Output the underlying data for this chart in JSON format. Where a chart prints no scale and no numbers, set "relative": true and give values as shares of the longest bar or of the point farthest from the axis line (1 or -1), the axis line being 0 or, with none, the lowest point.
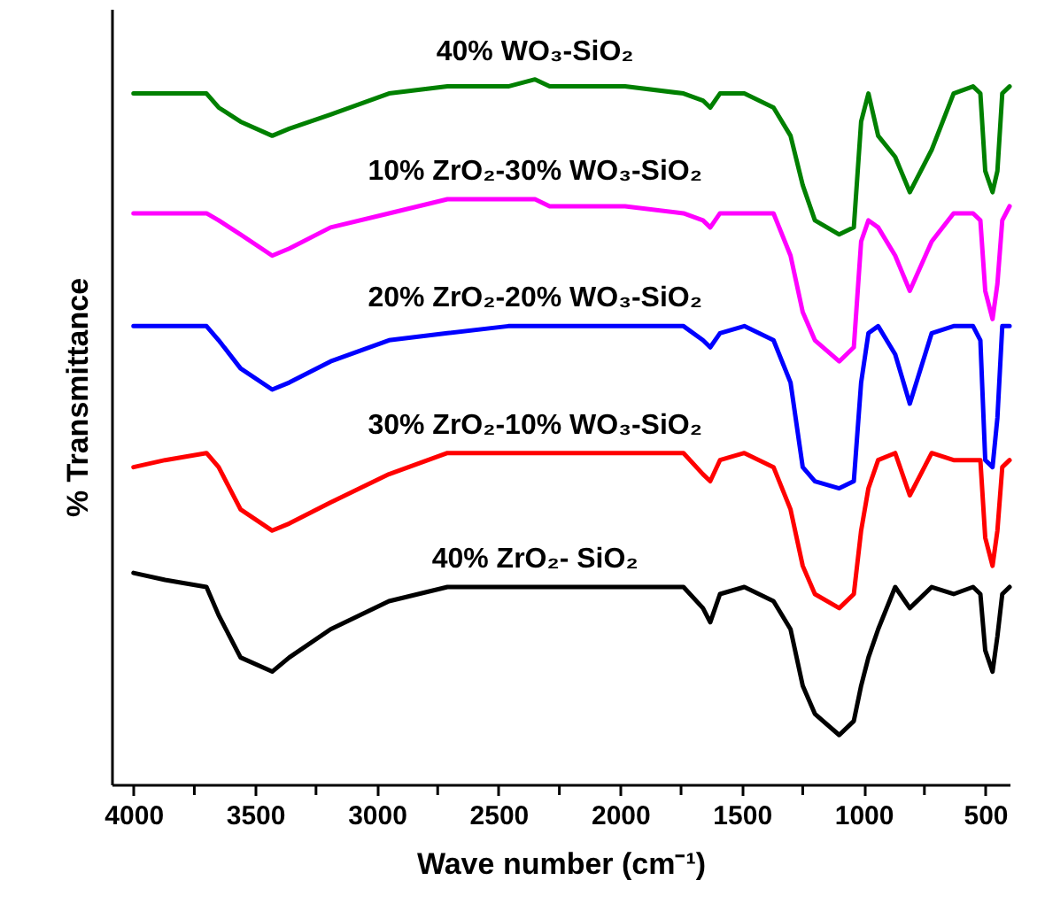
{
  "chart_data": {
    "type": "line",
    "relative": true,
    "xlabel": "Wave number (cm⁻¹)",
    "ylabel": "% Transmittance",
    "xlim": [
      4090,
      400
    ],
    "xticks": [
      4000,
      {
        "value": 3750,
        "label": null
      },
      3500,
      {
        "value": 3250,
        "label": null
      },
      3000,
      {
        "value": 2750,
        "label": null
      },
      2500,
      {
        "value": 2250,
        "label": null
      },
      2000,
      {
        "value": 1750,
        "label": null
      },
      1500,
      {
        "value": 1250,
        "label": null
      },
      1000,
      {
        "value": 750,
        "label": null
      },
      500
    ],
    "x": [
      4000,
      3870,
      3700,
      3650,
      3560,
      3430,
      3360,
      3190,
      2950,
      2710,
      2460,
      2350,
      2290,
      1980,
      1740,
      1660,
      1630,
      1590,
      1490,
      1370,
      1300,
      1250,
      1200,
      1100,
      1040,
      1010,
      980,
      940,
      870,
      810,
      720,
      630,
      550,
      520,
      500,
      470,
      450,
      430,
      400
    ],
    "grid": false,
    "marker": "none",
    "line_style": "solid",
    "series": [
      {
        "name": "40% WO₃-SiO₂",
        "color": "#008000",
        "values": [
          0.98,
          0.98,
          0.98,
          0.96,
          0.94,
          0.92,
          0.93,
          0.95,
          0.98,
          0.99,
          0.99,
          1,
          0.99,
          0.99,
          0.98,
          0.97,
          0.96,
          0.98,
          0.98,
          0.96,
          0.92,
          0.85,
          0.8,
          0.78,
          0.79,
          0.94,
          0.98,
          0.92,
          0.89,
          0.84,
          0.9,
          0.98,
          0.99,
          0.98,
          0.87,
          0.84,
          0.87,
          0.98,
          0.99
        ]
      },
      {
        "name": "10% ZrO₂-30% WO₃-SiO₂",
        "color": "#ff00ff",
        "values": [
          0.81,
          0.81,
          0.81,
          0.8,
          0.78,
          0.75,
          0.76,
          0.79,
          0.81,
          0.83,
          0.83,
          0.83,
          0.82,
          0.82,
          0.81,
          0.8,
          0.79,
          0.81,
          0.81,
          0.81,
          0.75,
          0.67,
          0.63,
          0.6,
          0.62,
          0.77,
          0.8,
          0.79,
          0.75,
          0.7,
          0.77,
          0.81,
          0.81,
          0.8,
          0.7,
          0.66,
          0.71,
          0.8,
          0.82
        ]
      },
      {
        "name": "20% ZrO₂-20% WO₃-SiO₂",
        "color": "#0000ff",
        "values": [
          0.65,
          0.65,
          0.65,
          0.63,
          0.59,
          0.56,
          0.57,
          0.6,
          0.63,
          0.64,
          0.65,
          0.65,
          0.65,
          0.65,
          0.65,
          0.63,
          0.62,
          0.64,
          0.65,
          0.63,
          0.57,
          0.45,
          0.43,
          0.42,
          0.43,
          0.57,
          0.64,
          0.65,
          0.61,
          0.54,
          0.64,
          0.65,
          0.65,
          0.63,
          0.46,
          0.45,
          0.52,
          0.65,
          0.65
        ]
      },
      {
        "name": "30% ZrO₂-10% WO₃-SiO₂",
        "color": "#ff0000",
        "values": [
          0.45,
          0.46,
          0.47,
          0.45,
          0.39,
          0.36,
          0.37,
          0.4,
          0.44,
          0.47,
          0.47,
          0.47,
          0.47,
          0.47,
          0.47,
          0.44,
          0.43,
          0.46,
          0.47,
          0.45,
          0.39,
          0.31,
          0.27,
          0.25,
          0.27,
          0.36,
          0.42,
          0.46,
          0.47,
          0.41,
          0.47,
          0.46,
          0.46,
          0.46,
          0.35,
          0.31,
          0.36,
          0.45,
          0.46
        ]
      },
      {
        "name": "40% ZrO₂- SiO₂",
        "color": "#000000",
        "values": [
          0.3,
          0.29,
          0.28,
          0.24,
          0.18,
          0.16,
          0.18,
          0.22,
          0.26,
          0.28,
          0.28,
          0.28,
          0.28,
          0.28,
          0.28,
          0.25,
          0.23,
          0.27,
          0.28,
          0.26,
          0.22,
          0.14,
          0.1,
          0.07,
          0.09,
          0.14,
          0.18,
          0.22,
          0.28,
          0.25,
          0.28,
          0.27,
          0.28,
          0.27,
          0.19,
          0.16,
          0.21,
          0.27,
          0.28
        ]
      }
    ]
  }
}
